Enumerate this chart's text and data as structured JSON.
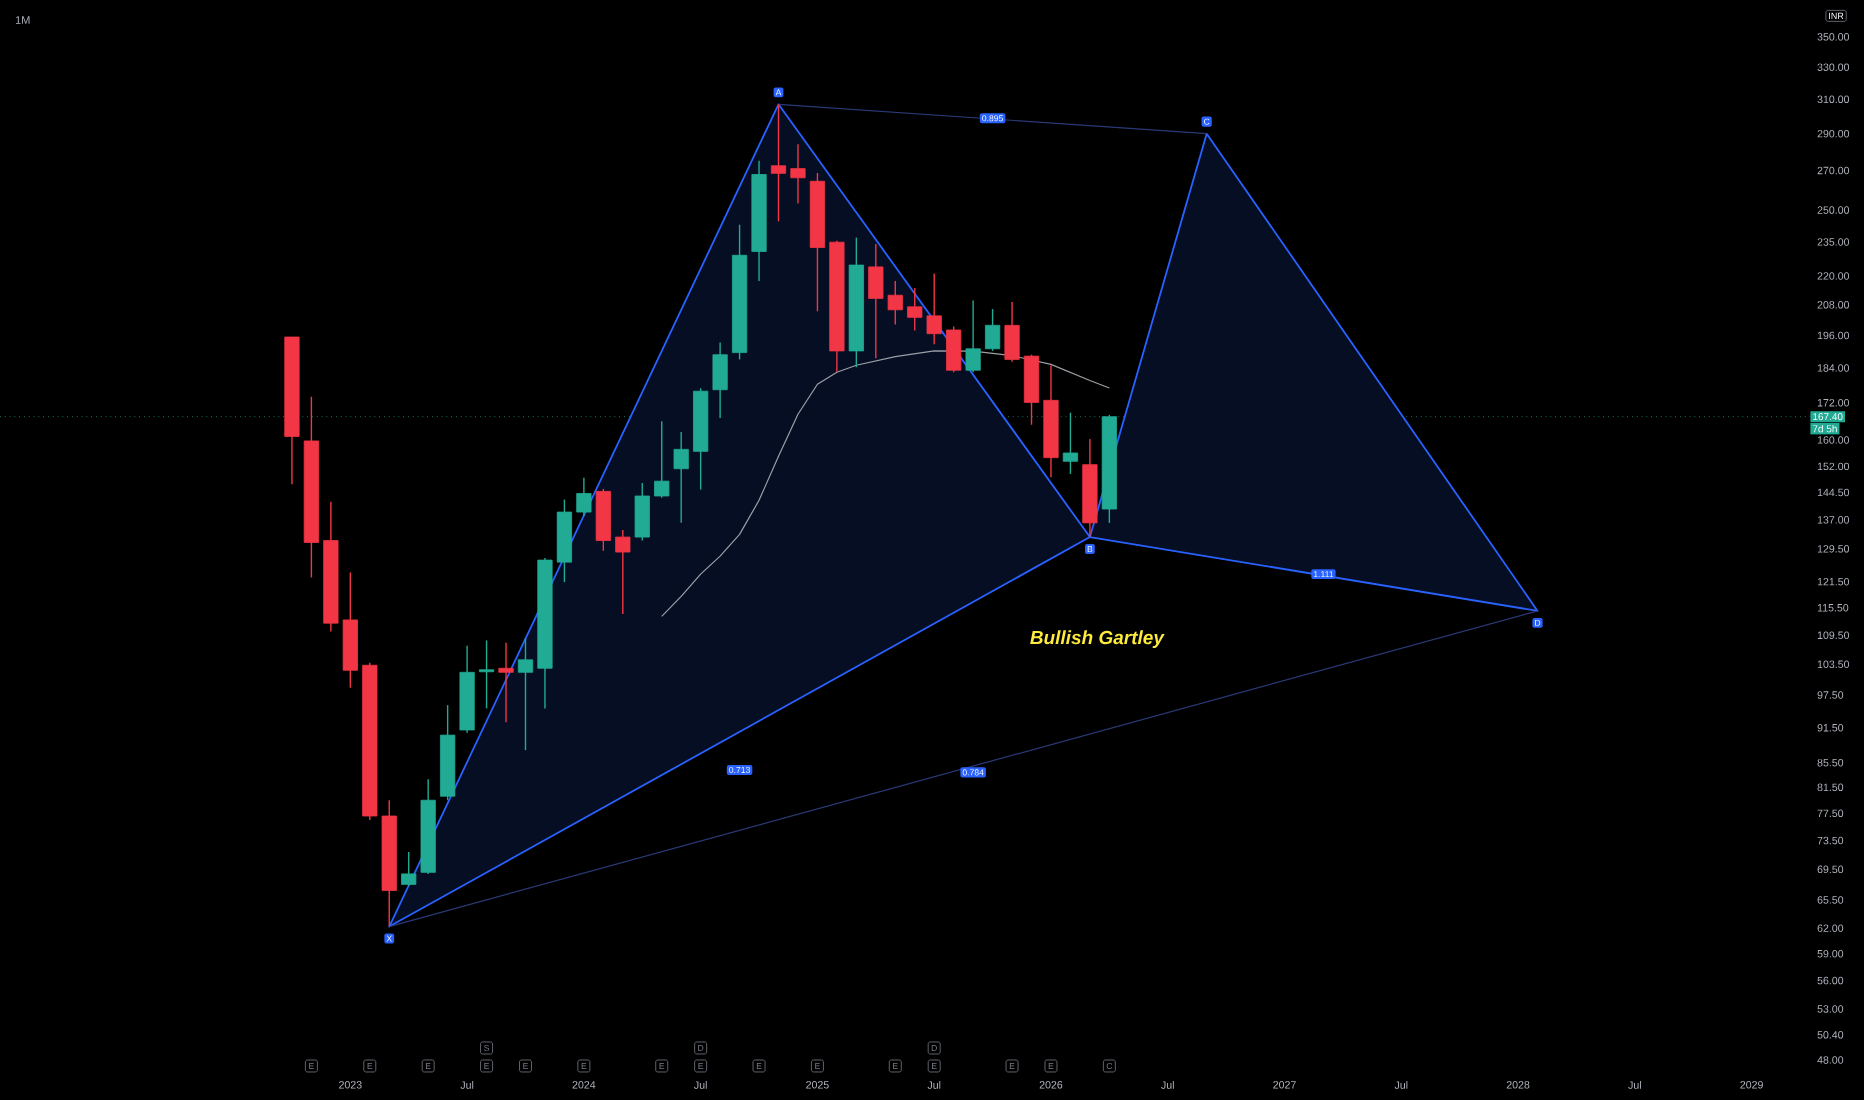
{
  "chart_data": {
    "type": "candlestick",
    "title": "1M",
    "x": [
      "2022-10",
      "2022-11",
      "2022-12",
      "2023-01",
      "2023-02",
      "2023-03",
      "2023-04",
      "2023-05",
      "2023-06",
      "2023-07",
      "2023-08",
      "2023-09",
      "2023-10",
      "2023-11",
      "2023-12",
      "2024-01",
      "2024-02",
      "2024-03",
      "2024-04",
      "2024-05",
      "2024-06",
      "2024-07",
      "2024-08",
      "2024-09",
      "2024-10",
      "2024-11",
      "2024-12",
      "2025-01",
      "2025-02",
      "2025-03",
      "2025-04",
      "2025-05",
      "2025-06",
      "2025-07",
      "2025-08",
      "2025-09",
      "2025-10",
      "2025-11",
      "2025-12",
      "2026-01",
      "2026-02",
      "2026-03",
      "2026-04"
    ],
    "ohlc": [
      [
        195.4,
        195.4,
        146.8,
        161.1
      ],
      [
        159.7,
        174.0,
        122.5,
        131.1
      ],
      [
        131.6,
        141.9,
        110.3,
        112.1
      ],
      [
        112.8,
        123.7,
        98.9,
        102.3
      ],
      [
        103.3,
        103.8,
        76.5,
        77.1
      ],
      [
        77.1,
        79.5,
        62.2,
        66.7
      ],
      [
        67.5,
        71.9,
        67.3,
        68.9
      ],
      [
        69.1,
        82.8,
        68.9,
        79.5
      ],
      [
        80.1,
        95.6,
        79.5,
        90.2
      ],
      [
        91.1,
        107.3,
        90.6,
        101.9
      ],
      [
        102.0,
        108.4,
        95.0,
        102.4
      ],
      [
        102.7,
        107.9,
        92.5,
        101.9
      ],
      [
        101.9,
        108.8,
        87.6,
        104.4
      ],
      [
        102.7,
        127.2,
        95.0,
        126.7
      ],
      [
        126.2,
        142.5,
        121.4,
        139.1
      ],
      [
        139.1,
        148.7,
        138.0,
        144.2
      ],
      [
        144.8,
        145.5,
        129.0,
        131.6
      ],
      [
        132.5,
        134.3,
        114.1,
        128.7
      ],
      [
        132.5,
        147.2,
        131.6,
        143.5
      ],
      [
        143.5,
        165.9,
        143.0,
        147.7
      ],
      [
        151.3,
        162.5,
        136.2,
        157.1
      ],
      [
        156.5,
        176.9,
        145.3,
        175.9
      ],
      [
        176.4,
        193.3,
        167.0,
        188.8
      ],
      [
        189.6,
        243.0,
        187.1,
        229.0
      ],
      [
        230.7,
        275.2,
        217.9,
        267.9
      ],
      [
        272.5,
        307.0,
        244.6,
        268.5
      ],
      [
        271.0,
        284.1,
        253.2,
        266.2
      ],
      [
        264.4,
        268.7,
        205.4,
        232.5
      ],
      [
        234.9,
        235.5,
        182.5,
        190.2
      ],
      [
        190.2,
        237.0,
        184.3,
        224.7
      ],
      [
        223.9,
        234.1,
        187.5,
        210.6
      ],
      [
        211.9,
        217.9,
        200.2,
        206.0
      ],
      [
        207.2,
        214.9,
        197.9,
        203.0
      ],
      [
        203.6,
        221.0,
        192.7,
        196.7
      ],
      [
        198.1,
        199.5,
        182.5,
        183.2
      ],
      [
        183.2,
        209.8,
        182.5,
        191.0
      ],
      [
        191.0,
        206.3,
        190.2,
        199.9
      ],
      [
        199.9,
        209.1,
        186.2,
        187.1
      ],
      [
        188.3,
        188.8,
        164.8,
        172.1
      ],
      [
        172.8,
        185.0,
        148.8,
        154.6
      ],
      [
        153.5,
        168.7,
        149.8,
        156.0
      ],
      [
        152.5,
        160.3,
        132.5,
        136.2
      ],
      [
        139.9,
        168.0,
        136.2,
        167.4
      ]
    ],
    "colors": [
      "#f23645",
      "#f23645",
      "#f23645",
      "#f23645",
      "#f23645",
      "#f23645",
      "#22ab94",
      "#22ab94",
      "#22ab94",
      "#22ab94",
      "#22ab94",
      "#f23645",
      "#22ab94",
      "#22ab94",
      "#22ab94",
      "#22ab94",
      "#f23645",
      "#f23645",
      "#22ab94",
      "#22ab94",
      "#22ab94",
      "#22ab94",
      "#22ab94",
      "#22ab94",
      "#22ab94",
      "#f23645",
      "#f23645",
      "#f23645",
      "#f23645",
      "#22ab94",
      "#f23645",
      "#f23645",
      "#f23645",
      "#f23645",
      "#f23645",
      "#22ab94",
      "#22ab94",
      "#f23645",
      "#f23645",
      "#f23645",
      "#22ab94",
      "#f23645",
      "#22ab94"
    ],
    "series": [
      {
        "type": "line",
        "color": "#9aa0a6",
        "x": [
          "2024-05",
          "2024-06",
          "2024-07",
          "2024-08",
          "2024-09",
          "2024-10",
          "2024-11",
          "2024-12",
          "2025-01",
          "2025-02",
          "2025-03",
          "2025-05",
          "2025-07",
          "2025-09",
          "2025-11",
          "2026-01",
          "2026-03",
          "2026-04"
        ],
        "values": [
          113.6,
          118.1,
          123.3,
          127.7,
          133.2,
          142.3,
          155.0,
          168.2,
          178.3,
          182.5,
          185.0,
          188.1,
          190.2,
          190.1,
          188.5,
          185.3,
          179.6,
          177.0
        ]
      },
      {
        "type": "area",
        "color": "#2962ff",
        "x": [
          "2023-03",
          "2024-11",
          "2026-03"
        ],
        "values": [
          62.2,
          307,
          132.5
        ]
      },
      {
        "type": "area",
        "color": "#2962ff",
        "x": [
          "2026-03",
          "2026-09",
          "2028-02"
        ],
        "values": [
          132.5,
          290,
          114.8
        ]
      },
      {
        "type": "line",
        "color": "#2a3a78",
        "x": [
          "2024-11",
          "2026-09"
        ],
        "values": [
          307,
          290
        ]
      },
      {
        "type": "line",
        "color": "#2a3a78",
        "x": [
          "2023-03",
          "2028-02"
        ],
        "values": [
          62.2,
          114.8
        ]
      }
    ],
    "ref_lines": [
      {
        "axis": "y",
        "value": 167.4,
        "label": "167.40",
        "color": "#22ab94",
        "line_style": "dotted"
      }
    ],
    "annotations": [
      "INR",
      "Bullish Gartley",
      "7d 5h",
      {
        "text": "X",
        "x": "2023-03",
        "y": 62.2
      },
      {
        "text": "A",
        "x": "2024-11",
        "y": 307
      },
      {
        "text": "B",
        "x": "2026-03",
        "y": 132.5
      },
      {
        "text": "C",
        "x": "2026-09",
        "y": 290
      },
      {
        "text": "D",
        "x": "2028-02",
        "y": 114.8
      },
      {
        "text": "0.713",
        "x": "2024-09",
        "y": 84.3
      },
      {
        "text": "0.895",
        "x": "2025-10",
        "y": 298.8
      },
      {
        "text": "1.111",
        "x": "2027-03",
        "y": 123.3
      },
      {
        "text": "0.784",
        "x": "2025-09",
        "y": 83.9
      },
      {
        "text": "E",
        "x": "2022-11"
      },
      {
        "text": "E",
        "x": "2023-02"
      },
      {
        "text": "E",
        "x": "2023-05"
      },
      {
        "text": "E",
        "x": "2023-08"
      },
      {
        "text": "S",
        "x": "2023-08"
      },
      {
        "text": "E",
        "x": "2023-10"
      },
      {
        "text": "E",
        "x": "2024-01"
      },
      {
        "text": "E",
        "x": "2024-05"
      },
      {
        "text": "E",
        "x": "2024-07"
      },
      {
        "text": "D",
        "x": "2024-07"
      },
      {
        "text": "E",
        "x": "2024-10"
      },
      {
        "text": "E",
        "x": "2025-01"
      },
      {
        "text": "E",
        "x": "2025-05"
      },
      {
        "text": "E",
        "x": "2025-07"
      },
      {
        "text": "D",
        "x": "2025-07"
      },
      {
        "text": "E",
        "x": "2025-11"
      },
      {
        "text": "E",
        "x": "2026-01"
      },
      {
        "text": "C",
        "x": "2026-04"
      }
    ],
    "log": "y",
    "xlim": [
      "2021-07",
      "2029-04"
    ],
    "ylim": [
      48,
      376
    ],
    "xticks": [
      {
        "value": "2023-01",
        "label": "2023"
      },
      {
        "value": "2023-07",
        "label": "Jul"
      },
      {
        "value": "2024-01",
        "label": "2024"
      },
      {
        "value": "2024-07",
        "label": "Jul"
      },
      {
        "value": "2025-01",
        "label": "2025"
      },
      {
        "value": "2025-07",
        "label": "Jul"
      },
      {
        "value": "2026-01",
        "label": "2026"
      },
      {
        "value": "2026-07",
        "label": "Jul"
      },
      {
        "value": "2027-01",
        "label": "2027"
      },
      {
        "value": "2027-07",
        "label": "Jul"
      },
      {
        "value": "2028-01",
        "label": "2028"
      },
      {
        "value": "2028-07",
        "label": "Jul"
      },
      {
        "value": "2029-01",
        "label": "2029"
      }
    ],
    "yticks": [
      {
        "value": 350,
        "label": "350.00"
      },
      {
        "value": 330,
        "label": "330.00"
      },
      {
        "value": 310,
        "label": "310.00"
      },
      {
        "value": 290,
        "label": "290.00"
      },
      {
        "value": 270,
        "label": "270.00"
      },
      {
        "value": 250,
        "label": "250.00"
      },
      {
        "value": 235,
        "label": "235.00"
      },
      {
        "value": 220,
        "label": "220.00"
      },
      {
        "value": 208,
        "label": "208.00"
      },
      {
        "value": 196,
        "label": "196.00"
      },
      {
        "value": 184,
        "label": "184.00"
      },
      {
        "value": 172,
        "label": "172.00"
      },
      {
        "value": 160,
        "label": "160.00"
      },
      {
        "value": 152,
        "label": "152.00"
      },
      {
        "value": 144.5,
        "label": "144.50"
      },
      {
        "value": 137,
        "label": "137.00"
      },
      {
        "value": 129.5,
        "label": "129.50"
      },
      {
        "value": 121.5,
        "label": "121.50"
      },
      {
        "value": 115.5,
        "label": "115.50"
      },
      {
        "value": 109.5,
        "label": "109.50"
      },
      {
        "value": 103.5,
        "label": "103.50"
      },
      {
        "value": 97.5,
        "label": "97.50"
      },
      {
        "value": 91.5,
        "label": "91.50"
      },
      {
        "value": 85.5,
        "label": "85.50"
      },
      {
        "value": 81.5,
        "label": "81.50"
      },
      {
        "value": 77.5,
        "label": "77.50"
      },
      {
        "value": 73.5,
        "label": "73.50"
      },
      {
        "value": 69.5,
        "label": "69.50"
      },
      {
        "value": 65.5,
        "label": "65.50"
      },
      {
        "value": 62,
        "label": "62.00"
      },
      {
        "value": 59,
        "label": "59.00"
      },
      {
        "value": 56,
        "label": "56.00"
      },
      {
        "value": 53,
        "label": "53.00"
      },
      {
        "value": 50.4,
        "label": "50.40"
      },
      {
        "value": 48,
        "label": "48.00"
      }
    ]
  }
}
